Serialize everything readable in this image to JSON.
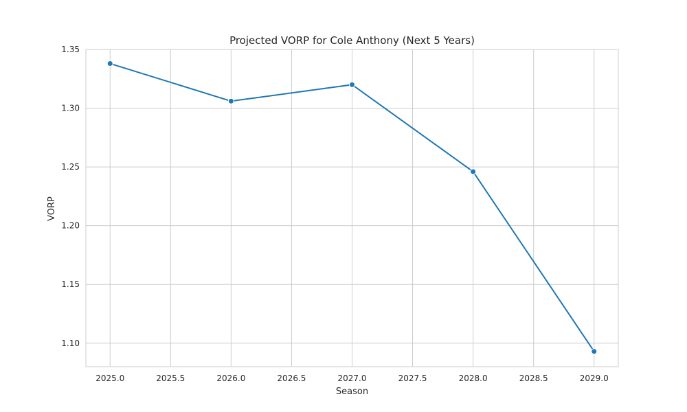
{
  "chart_data": {
    "type": "line",
    "title": "Projected VORP for Cole Anthony (Next 5 Years)",
    "xlabel": "Season",
    "ylabel": "VORP",
    "xlim": [
      2024.8,
      2029.2
    ],
    "ylim": [
      1.08,
      1.35
    ],
    "x_ticks": [
      2025.0,
      2025.5,
      2026.0,
      2026.5,
      2027.0,
      2027.5,
      2028.0,
      2028.5,
      2029.0
    ],
    "x_tick_labels": [
      "2025.0",
      "2025.5",
      "2026.0",
      "2026.5",
      "2027.0",
      "2027.5",
      "2028.0",
      "2028.5",
      "2029.0"
    ],
    "y_ticks": [
      1.1,
      1.15,
      1.2,
      1.25,
      1.3,
      1.35
    ],
    "y_tick_labels": [
      "1.10",
      "1.15",
      "1.20",
      "1.25",
      "1.30",
      "1.35"
    ],
    "grid": true,
    "series": [
      {
        "color": "#1f77b4",
        "marker": "circle",
        "x": [
          2025,
          2026,
          2027,
          2028,
          2029
        ],
        "y": [
          1.338,
          1.306,
          1.32,
          1.246,
          1.093
        ]
      }
    ]
  }
}
